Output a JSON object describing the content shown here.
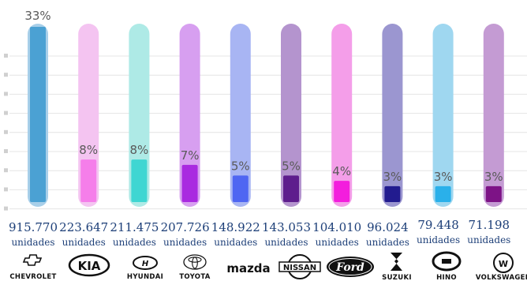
{
  "chart_data": {
    "type": "bar",
    "categories": [
      "CHEVROLET",
      "KIA",
      "HYUNDAI",
      "TOYOTA",
      "mazda",
      "NISSAN",
      "Ford",
      "SUZUKI",
      "HINO",
      "VOLKSWAGEN"
    ],
    "values": [
      33,
      8,
      8,
      7,
      5,
      5,
      4,
      3,
      3,
      3
    ],
    "percent_labels": [
      "33%",
      "8%",
      "8%",
      "7%",
      "5%",
      "5%",
      "4%",
      "3%",
      "3%",
      "3%"
    ],
    "units_values": [
      "915.770",
      "223.647",
      "211.475",
      "207.726",
      "148.922",
      "143.053",
      "104.010",
      "96.024",
      "79.448",
      "71.198"
    ],
    "unit_label": "unidades",
    "ylim": [
      0,
      33
    ],
    "grid": true,
    "colors": {
      "tube": [
        "#a8cfe9",
        "#f4c4f1",
        "#aeeae6",
        "#d79ff0",
        "#a8b5f3",
        "#b494ce",
        "#f49ee9",
        "#9b96d0",
        "#9fd7f0",
        "#c49bd3"
      ],
      "fill": [
        "#4ba1d3",
        "#f57eea",
        "#3fd6d2",
        "#a92ae0",
        "#4f66f2",
        "#5e1d8d",
        "#f31edd",
        "#221b8f",
        "#2ab0ea",
        "#7d1386"
      ]
    }
  }
}
